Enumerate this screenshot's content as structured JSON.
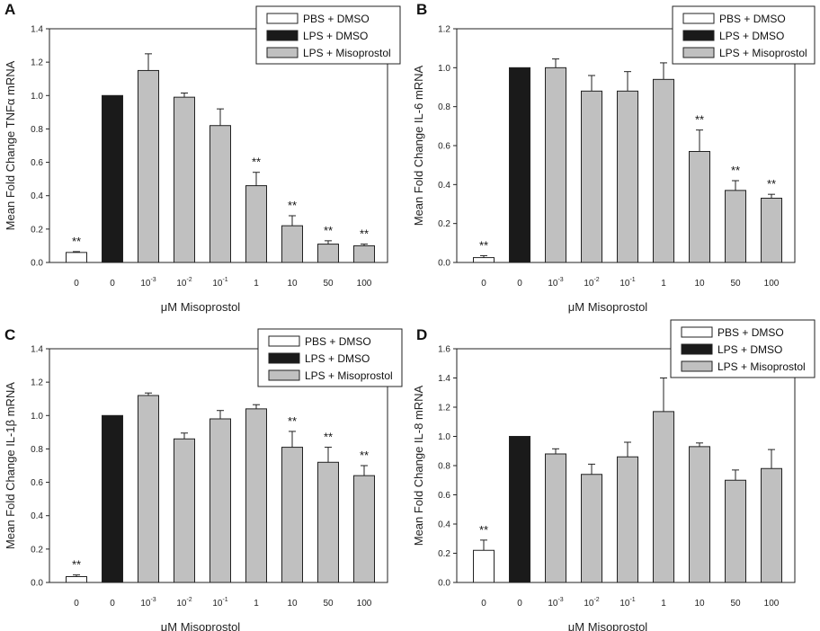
{
  "figure": {
    "panels": [
      "A",
      "B",
      "C",
      "D"
    ]
  },
  "legend": [
    {
      "label": "PBS + DMSO",
      "color": "#ffffff"
    },
    {
      "label": "LPS + DMSO",
      "color": "#1a1a1a"
    },
    {
      "label": "LPS + Misoprostol",
      "color": "#c0c0c0"
    }
  ],
  "chart_data": [
    {
      "panel": "A",
      "type": "bar",
      "xlabel": "μM Misoprostol",
      "ylabel": "Mean Fold Change TNFα mRNA",
      "ylim": [
        0,
        1.4
      ],
      "yticks": [
        "0.0",
        "0.2",
        "0.4",
        "0.6",
        "0.8",
        "1.0",
        "1.2",
        "1.4"
      ],
      "categories": [
        {
          "base": "0"
        },
        {
          "base": "0"
        },
        {
          "base": "10",
          "exp": "-3"
        },
        {
          "base": "10",
          "exp": "-2"
        },
        {
          "base": "10",
          "exp": "-1"
        },
        {
          "base": "1"
        },
        {
          "base": "10"
        },
        {
          "base": "50"
        },
        {
          "base": "100"
        }
      ],
      "groups": [
        "PBS + DMSO",
        "LPS + DMSO",
        "LPS + Misoprostol",
        "LPS + Misoprostol",
        "LPS + Misoprostol",
        "LPS + Misoprostol",
        "LPS + Misoprostol",
        "LPS + Misoprostol",
        "LPS + Misoprostol"
      ],
      "values": [
        0.06,
        1.0,
        1.15,
        0.99,
        0.82,
        0.46,
        0.22,
        0.11,
        0.1
      ],
      "errors": [
        0.005,
        0,
        0.1,
        0.025,
        0.1,
        0.08,
        0.06,
        0.02,
        0.01
      ],
      "significance": [
        "**",
        "",
        "",
        "",
        "",
        "**",
        "**",
        "**",
        "**"
      ]
    },
    {
      "panel": "B",
      "type": "bar",
      "xlabel": "μM Misoprostol",
      "ylabel": "Mean Fold Change IL-6 mRNA",
      "ylim": [
        0,
        1.2
      ],
      "yticks": [
        "0.0",
        "0.2",
        "0.4",
        "0.6",
        "0.8",
        "1.0",
        "1.2"
      ],
      "categories": [
        {
          "base": "0"
        },
        {
          "base": "0"
        },
        {
          "base": "10",
          "exp": "-3"
        },
        {
          "base": "10",
          "exp": "-2"
        },
        {
          "base": "10",
          "exp": "-1"
        },
        {
          "base": "1"
        },
        {
          "base": "10"
        },
        {
          "base": "50"
        },
        {
          "base": "100"
        }
      ],
      "groups": [
        "PBS + DMSO",
        "LPS + DMSO",
        "LPS + Misoprostol",
        "LPS + Misoprostol",
        "LPS + Misoprostol",
        "LPS + Misoprostol",
        "LPS + Misoprostol",
        "LPS + Misoprostol",
        "LPS + Misoprostol"
      ],
      "values": [
        0.025,
        1.0,
        1.0,
        0.88,
        0.88,
        0.94,
        0.57,
        0.37,
        0.33
      ],
      "errors": [
        0.01,
        0,
        0.045,
        0.08,
        0.1,
        0.085,
        0.11,
        0.05,
        0.02
      ],
      "significance": [
        "**",
        "",
        "",
        "",
        "",
        "",
        "**",
        "**",
        "**"
      ]
    },
    {
      "panel": "C",
      "type": "bar",
      "xlabel": "μM Misoprostol",
      "ylabel": "Mean Fold Change IL-1β mRNA",
      "ylim": [
        0,
        1.4
      ],
      "yticks": [
        "0.0",
        "0.2",
        "0.4",
        "0.6",
        "0.8",
        "1.0",
        "1.2",
        "1.4"
      ],
      "categories": [
        {
          "base": "0"
        },
        {
          "base": "0"
        },
        {
          "base": "10",
          "exp": "-3"
        },
        {
          "base": "10",
          "exp": "-2"
        },
        {
          "base": "10",
          "exp": "-1"
        },
        {
          "base": "1"
        },
        {
          "base": "10"
        },
        {
          "base": "50"
        },
        {
          "base": "100"
        }
      ],
      "groups": [
        "PBS + DMSO",
        "LPS + DMSO",
        "LPS + Misoprostol",
        "LPS + Misoprostol",
        "LPS + Misoprostol",
        "LPS + Misoprostol",
        "LPS + Misoprostol",
        "LPS + Misoprostol",
        "LPS + Misoprostol"
      ],
      "values": [
        0.035,
        1.0,
        1.12,
        0.86,
        0.98,
        1.04,
        0.81,
        0.72,
        0.64
      ],
      "errors": [
        0.01,
        0,
        0.015,
        0.035,
        0.05,
        0.025,
        0.095,
        0.09,
        0.06
      ],
      "significance": [
        "**",
        "",
        "",
        "",
        "",
        "",
        "**",
        "**",
        "**"
      ]
    },
    {
      "panel": "D",
      "type": "bar",
      "xlabel": "μM Misoprostol",
      "ylabel": "Mean Fold Change IL-8 mRNA",
      "ylim": [
        0,
        1.6
      ],
      "yticks": [
        "0.0",
        "0.2",
        "0.4",
        "0.6",
        "0.8",
        "1.0",
        "1.2",
        "1.4",
        "1.6"
      ],
      "categories": [
        {
          "base": "0"
        },
        {
          "base": "0"
        },
        {
          "base": "10",
          "exp": "-3"
        },
        {
          "base": "10",
          "exp": "-2"
        },
        {
          "base": "10",
          "exp": "-1"
        },
        {
          "base": "1"
        },
        {
          "base": "10"
        },
        {
          "base": "50"
        },
        {
          "base": "100"
        }
      ],
      "groups": [
        "PBS + DMSO",
        "LPS + DMSO",
        "LPS + Misoprostol",
        "LPS + Misoprostol",
        "LPS + Misoprostol",
        "LPS + Misoprostol",
        "LPS + Misoprostol",
        "LPS + Misoprostol",
        "LPS + Misoprostol"
      ],
      "values": [
        0.22,
        1.0,
        0.88,
        0.74,
        0.86,
        1.17,
        0.93,
        0.7,
        0.78
      ],
      "errors": [
        0.07,
        0,
        0.035,
        0.07,
        0.1,
        0.23,
        0.025,
        0.07,
        0.13
      ],
      "significance": [
        "**",
        "",
        "",
        "",
        "",
        "",
        "",
        "",
        ""
      ]
    }
  ]
}
